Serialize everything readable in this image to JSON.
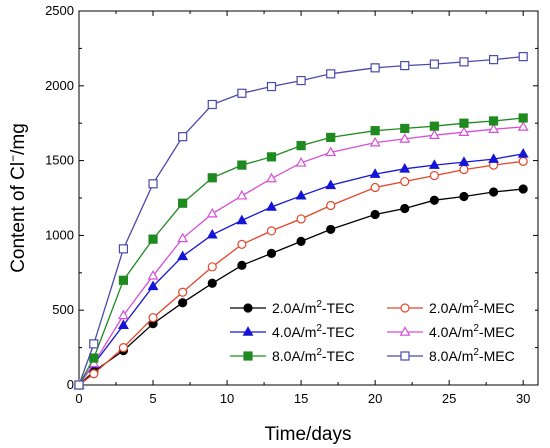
{
  "chart_data": {
    "type": "line",
    "xlabel": "Time/days",
    "ylabel_main": "Content of Cl",
    "ylabel_sup": "−",
    "ylabel_unit": "/mg",
    "xlim": [
      0,
      31
    ],
    "ylim": [
      0,
      2500
    ],
    "xticks": [
      0,
      5,
      10,
      15,
      20,
      25,
      30
    ],
    "yticks": [
      0,
      500,
      1000,
      1500,
      2000,
      2500
    ],
    "grid": false,
    "legend_position": "bottom-right",
    "series": [
      {
        "name_parts": [
          "2.0A/m",
          "2",
          "-TEC"
        ],
        "color": "#000000",
        "marker": "circle",
        "filled": true,
        "x": [
          0,
          1,
          3,
          5,
          7,
          9,
          11,
          13,
          15,
          17,
          20,
          22,
          24,
          26,
          28,
          30
        ],
        "y": [
          0,
          90,
          230,
          410,
          550,
          680,
          800,
          880,
          960,
          1040,
          1140,
          1180,
          1235,
          1260,
          1290,
          1310
        ]
      },
      {
        "name_parts": [
          "2.0A/m",
          "2",
          "-MEC"
        ],
        "color": "#e2462a",
        "marker": "circle",
        "filled": false,
        "x": [
          0,
          1,
          3,
          5,
          7,
          9,
          11,
          13,
          15,
          17,
          20,
          22,
          24,
          26,
          28,
          30
        ],
        "y": [
          0,
          75,
          250,
          450,
          620,
          790,
          940,
          1030,
          1110,
          1200,
          1320,
          1360,
          1400,
          1440,
          1470,
          1495
        ]
      },
      {
        "name_parts": [
          "4.0A/m",
          "2",
          "-TEC"
        ],
        "color": "#1515d6",
        "marker": "triangle",
        "filled": true,
        "x": [
          0,
          1,
          3,
          5,
          7,
          9,
          11,
          13,
          15,
          17,
          20,
          22,
          24,
          26,
          28,
          30
        ],
        "y": [
          0,
          140,
          400,
          660,
          860,
          1005,
          1100,
          1190,
          1265,
          1335,
          1410,
          1445,
          1470,
          1490,
          1510,
          1545
        ]
      },
      {
        "name_parts": [
          "4.0A/m",
          "2",
          "-MEC"
        ],
        "color": "#d64fd6",
        "marker": "triangle",
        "filled": false,
        "x": [
          0,
          1,
          3,
          5,
          7,
          9,
          11,
          13,
          15,
          17,
          20,
          22,
          24,
          26,
          28,
          30
        ],
        "y": [
          0,
          145,
          465,
          730,
          980,
          1145,
          1265,
          1380,
          1485,
          1555,
          1620,
          1645,
          1670,
          1690,
          1710,
          1725
        ]
      },
      {
        "name_parts": [
          "8.0A/m",
          "2",
          "-TEC"
        ],
        "color": "#1f8a1f",
        "marker": "square",
        "filled": true,
        "x": [
          0,
          1,
          3,
          5,
          7,
          9,
          11,
          13,
          15,
          17,
          20,
          22,
          24,
          26,
          28,
          30
        ],
        "y": [
          0,
          180,
          700,
          975,
          1215,
          1385,
          1470,
          1525,
          1600,
          1655,
          1700,
          1715,
          1730,
          1750,
          1765,
          1785
        ]
      },
      {
        "name_parts": [
          "8.0A/m",
          "2",
          "-MEC"
        ],
        "color": "#4a4aa8",
        "marker": "square",
        "filled": false,
        "x": [
          0,
          1,
          3,
          5,
          7,
          9,
          11,
          13,
          15,
          17,
          20,
          22,
          24,
          26,
          28,
          30
        ],
        "y": [
          0,
          275,
          910,
          1345,
          1660,
          1875,
          1950,
          1995,
          2035,
          2080,
          2120,
          2135,
          2145,
          2160,
          2175,
          2195
        ]
      }
    ]
  }
}
